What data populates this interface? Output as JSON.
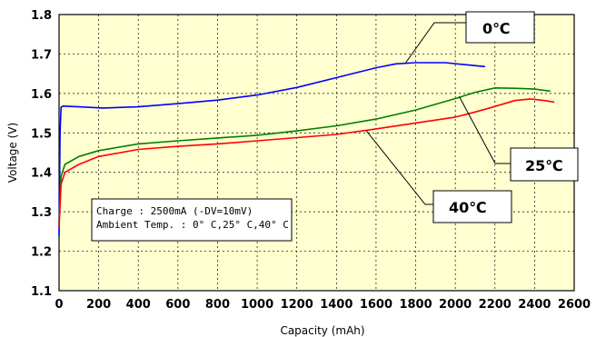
{
  "chart_data": {
    "type": "line",
    "title": "",
    "xlabel": "Capacity (mAh)",
    "ylabel": "Voltage (V)",
    "xlim": [
      0,
      2600
    ],
    "ylim": [
      1.1,
      1.8
    ],
    "x_ticks": [
      0,
      200,
      400,
      600,
      800,
      1000,
      1200,
      1400,
      1600,
      1800,
      2000,
      2200,
      2400,
      2600
    ],
    "y_ticks": [
      "1.1",
      "1.2",
      "1.3",
      "1.4",
      "1.5",
      "1.6",
      "1.7",
      "1.8"
    ],
    "grid": true,
    "background_color": "#ffffd0",
    "series": [
      {
        "name": "0℃",
        "color": "#0000ff",
        "points": [
          [
            0,
            1.24
          ],
          [
            5,
            1.5
          ],
          [
            10,
            1.565
          ],
          [
            20,
            1.568
          ],
          [
            100,
            1.566
          ],
          [
            220,
            1.563
          ],
          [
            400,
            1.566
          ],
          [
            600,
            1.574
          ],
          [
            800,
            1.583
          ],
          [
            1000,
            1.596
          ],
          [
            1200,
            1.615
          ],
          [
            1400,
            1.64
          ],
          [
            1600,
            1.665
          ],
          [
            1700,
            1.675
          ],
          [
            1800,
            1.678
          ],
          [
            1950,
            1.678
          ],
          [
            2050,
            1.673
          ],
          [
            2150,
            1.668
          ]
        ]
      },
      {
        "name": "25℃",
        "color": "#008000",
        "points": [
          [
            0,
            1.27
          ],
          [
            10,
            1.39
          ],
          [
            30,
            1.42
          ],
          [
            100,
            1.44
          ],
          [
            200,
            1.455
          ],
          [
            400,
            1.472
          ],
          [
            600,
            1.48
          ],
          [
            800,
            1.487
          ],
          [
            1000,
            1.494
          ],
          [
            1200,
            1.505
          ],
          [
            1400,
            1.518
          ],
          [
            1600,
            1.535
          ],
          [
            1800,
            1.558
          ],
          [
            2000,
            1.587
          ],
          [
            2100,
            1.603
          ],
          [
            2200,
            1.614
          ],
          [
            2300,
            1.613
          ],
          [
            2400,
            1.611
          ],
          [
            2480,
            1.606
          ]
        ]
      },
      {
        "name": "40℃",
        "color": "#ff0000",
        "points": [
          [
            0,
            1.26
          ],
          [
            10,
            1.37
          ],
          [
            30,
            1.4
          ],
          [
            100,
            1.42
          ],
          [
            200,
            1.44
          ],
          [
            400,
            1.458
          ],
          [
            600,
            1.466
          ],
          [
            800,
            1.472
          ],
          [
            1000,
            1.48
          ],
          [
            1200,
            1.488
          ],
          [
            1400,
            1.496
          ],
          [
            1600,
            1.51
          ],
          [
            1800,
            1.525
          ],
          [
            2000,
            1.54
          ],
          [
            2100,
            1.553
          ],
          [
            2200,
            1.567
          ],
          [
            2300,
            1.582
          ],
          [
            2380,
            1.586
          ],
          [
            2450,
            1.582
          ],
          [
            2500,
            1.578
          ]
        ]
      }
    ],
    "annotation_box": {
      "line1": "Charge : 2500mA (-DV=10mV)",
      "line2": "Ambient Temp. : 0° C,25° C,40° C"
    },
    "callouts": [
      {
        "label": "0℃",
        "series": 0
      },
      {
        "label": "25℃",
        "series": 1
      },
      {
        "label": "40℃",
        "series": 2
      }
    ]
  }
}
